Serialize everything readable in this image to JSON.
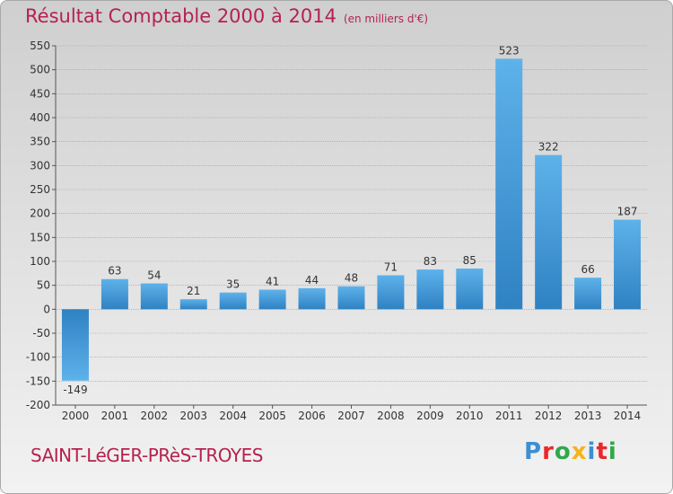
{
  "chart_data": {
    "type": "bar",
    "title": "Résultat Comptable 2000 à 2014",
    "subtitle": "(en milliers d'€)",
    "xlabel": "",
    "ylabel": "",
    "categories": [
      "2000",
      "2001",
      "2002",
      "2003",
      "2004",
      "2005",
      "2006",
      "2007",
      "2008",
      "2009",
      "2010",
      "2011",
      "2012",
      "2013",
      "2014"
    ],
    "values": [
      -149,
      63,
      54,
      21,
      35,
      41,
      44,
      48,
      71,
      83,
      85,
      523,
      322,
      66,
      187
    ],
    "ylim": [
      -200,
      550
    ],
    "yticks": [
      -200,
      -150,
      -100,
      -50,
      0,
      50,
      100,
      150,
      200,
      250,
      300,
      350,
      400,
      450,
      500,
      550
    ],
    "grid": true,
    "bar_color": "#3a8fd0"
  },
  "footer": {
    "commune": "SAINT-LéGER-PRèS-TROYES",
    "logo_text": "Proxiti",
    "logo_colors": [
      "#3c8fd3",
      "#e8292b",
      "#2fa84a",
      "#f4b41a",
      "#3c8fd3",
      "#e8292b",
      "#2fa84a"
    ]
  }
}
